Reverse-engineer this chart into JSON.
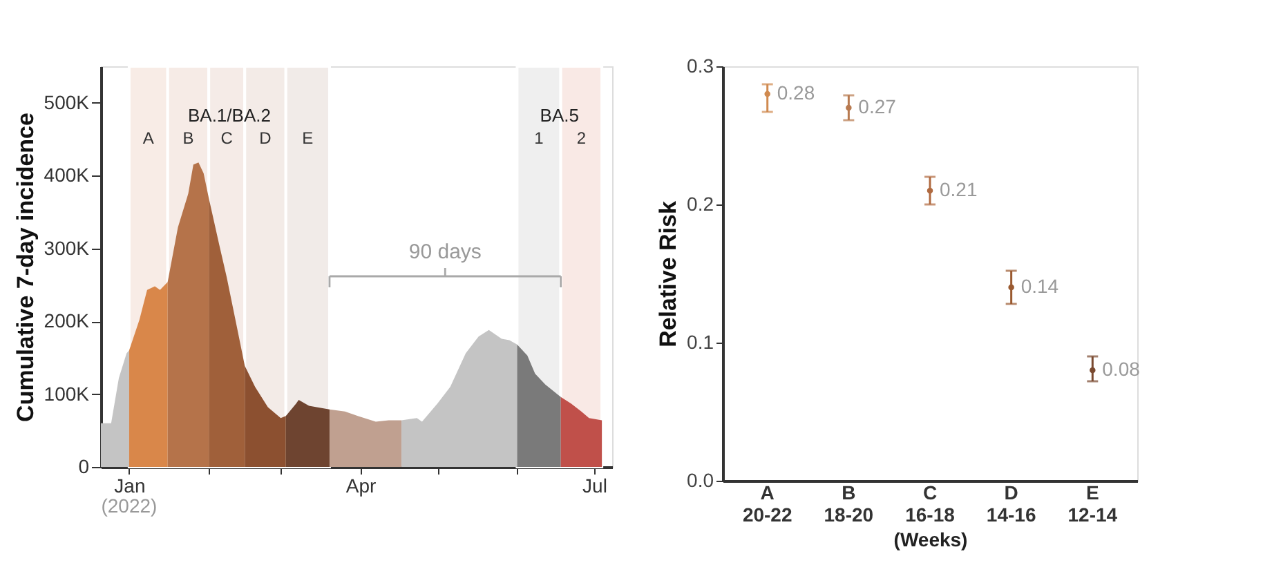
{
  "chart_data": [
    {
      "type": "area",
      "ylabel": "Cumulative 7-day incidence",
      "xlim": [
        "2021-12-21",
        "2022-07-08"
      ],
      "xticks": [
        {
          "value": "2022-01-01",
          "label": "Jan"
        },
        {
          "value": "2022-02-01",
          "label": null
        },
        {
          "value": "2022-03-01",
          "label": null
        },
        {
          "value": "2022-04-01",
          "label": "Apr"
        },
        {
          "value": "2022-05-01",
          "label": null
        },
        {
          "value": "2022-06-01",
          "label": null
        },
        {
          "value": "2022-07-01",
          "label": "Jul"
        }
      ],
      "ylim": [
        0,
        550000
      ],
      "yticks": [
        0,
        {
          "value": 100000,
          "label": "100K"
        },
        {
          "value": 200000,
          "label": "200K"
        },
        {
          "value": 300000,
          "label": "300K"
        },
        {
          "value": 400000,
          "label": "400K"
        },
        {
          "value": 500000,
          "label": "500K"
        }
      ],
      "series": [
        {
          "color": "#c4c4c4",
          "x": [
            "2021-12-21",
            "2021-12-25",
            "2021-12-28",
            "2021-12-31",
            "2022-01-01"
          ],
          "values": [
            60000,
            60000,
            122000,
            156000,
            160000
          ]
        },
        {
          "color": "#d9874a",
          "x": [
            "2022-01-01",
            "2022-01-05",
            "2022-01-08",
            "2022-01-11",
            "2022-01-13",
            "2022-01-16"
          ],
          "values": [
            160000,
            202000,
            243000,
            248000,
            243000,
            254000
          ]
        },
        {
          "color": "#b5734a",
          "x": [
            "2022-01-16",
            "2022-01-20",
            "2022-01-24",
            "2022-01-26",
            "2022-01-28",
            "2022-01-30",
            "2022-02-01"
          ],
          "values": [
            254000,
            329000,
            375000,
            415000,
            418000,
            403000,
            369000
          ]
        },
        {
          "color": "#a0603a",
          "x": [
            "2022-02-01",
            "2022-02-05",
            "2022-02-08",
            "2022-02-12",
            "2022-02-15"
          ],
          "values": [
            369000,
            306000,
            260000,
            191000,
            139000
          ]
        },
        {
          "color": "#8c5030",
          "x": [
            "2022-02-15",
            "2022-02-19",
            "2022-02-24",
            "2022-03-01",
            "2022-03-03"
          ],
          "values": [
            139000,
            110000,
            82000,
            67000,
            70000
          ]
        },
        {
          "color": "#6e4430",
          "x": [
            "2022-03-03",
            "2022-03-07",
            "2022-03-08",
            "2022-03-12",
            "2022-03-15",
            "2022-03-20"
          ],
          "values": [
            70000,
            87000,
            92000,
            84000,
            82000,
            79000
          ]
        },
        {
          "color": "#c0a090",
          "x": [
            "2022-03-20",
            "2022-03-26",
            "2022-03-31",
            "2022-04-07",
            "2022-04-12",
            "2022-04-17"
          ],
          "values": [
            79000,
            76000,
            70000,
            62000,
            64000,
            64000
          ]
        },
        {
          "color": "#c4c4c4",
          "x": [
            "2022-04-17",
            "2022-04-23",
            "2022-04-25",
            "2022-05-01",
            "2022-05-06",
            "2022-05-12",
            "2022-05-17",
            "2022-05-21",
            "2022-05-26",
            "2022-05-29",
            "2022-06-01"
          ],
          "values": [
            64000,
            67000,
            62000,
            87000,
            110000,
            156000,
            179000,
            188000,
            176000,
            174000,
            168000
          ]
        },
        {
          "color": "#7a7a7a",
          "x": [
            "2022-06-01",
            "2022-06-05",
            "2022-06-08",
            "2022-06-12",
            "2022-06-18"
          ],
          "values": [
            168000,
            153000,
            128000,
            113000,
            96000
          ]
        },
        {
          "color": "#c0504a",
          "x": [
            "2022-06-18",
            "2022-06-22",
            "2022-06-26",
            "2022-06-29",
            "2022-07-04"
          ],
          "values": [
            96000,
            87000,
            76000,
            67000,
            64000
          ]
        }
      ],
      "bands": [
        {
          "axis": "x",
          "from": "2022-01-01",
          "to": "2022-01-16",
          "label": "A",
          "color": "#f8ece6"
        },
        {
          "axis": "x",
          "from": "2022-01-16",
          "to": "2022-02-01",
          "label": "B",
          "color": "#f6ebe6"
        },
        {
          "axis": "x",
          "from": "2022-02-01",
          "to": "2022-02-15",
          "label": "C",
          "color": "#f5ebe7"
        },
        {
          "axis": "x",
          "from": "2022-02-15",
          "to": "2022-03-03",
          "label": "D",
          "color": "#f3ebe7"
        },
        {
          "axis": "x",
          "from": "2022-03-03",
          "to": "2022-03-20",
          "label": "E",
          "color": "#f1ebe8"
        },
        {
          "axis": "x",
          "from": "2022-06-01",
          "to": "2022-06-18",
          "label": "1",
          "color": "#efefef"
        },
        {
          "axis": "x",
          "from": "2022-06-18",
          "to": "2022-07-04",
          "label": "2",
          "color": "#f9e9e5"
        }
      ],
      "annotations": [
        "BA.1/BA.2",
        "BA.5",
        "90 days",
        "(2022)"
      ],
      "grid": false
    },
    {
      "type": "scatter",
      "ylabel": "Relative Risk",
      "xlabel": "(Weeks)",
      "categories": [
        "A\n20-22",
        "B\n18-20",
        "C\n16-18",
        "D\n14-16",
        "E\n12-14"
      ],
      "values": [
        0.28,
        0.27,
        0.21,
        0.14,
        0.08
      ],
      "errors": [
        [
          0.267,
          0.287
        ],
        [
          0.261,
          0.279
        ],
        [
          0.2,
          0.22
        ],
        [
          0.128,
          0.152
        ],
        [
          0.072,
          0.09
        ]
      ],
      "colors": [
        "#d08a50",
        "#b87a50",
        "#b06a40",
        "#9a5a30",
        "#7a4a30"
      ],
      "ylim": [
        0,
        0.3
      ],
      "yticks": [
        {
          "value": 0,
          "label": "0.0"
        },
        0.1,
        0.2,
        0.3
      ],
      "data_labels": true,
      "marker": "circle",
      "grid": false
    }
  ]
}
